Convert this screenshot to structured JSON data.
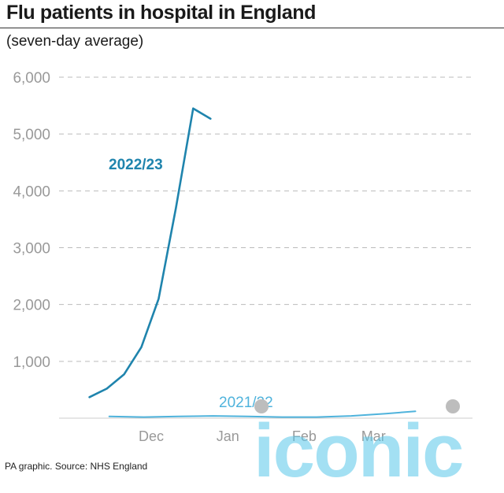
{
  "title": "Flu patients in hospital in England",
  "subtitle": "(seven-day average)",
  "source": "PA graphic. Source: NHS England",
  "watermark": "iconic",
  "colors": {
    "series_2022": "#1f84ad",
    "series_2021": "#4fb3dc",
    "grid": "#bbbbbb",
    "ticks": "#999999",
    "watermark": "#58c7ea"
  },
  "chart_data": {
    "type": "line",
    "title": "Flu patients in hospital in England",
    "subtitle": "(seven-day average)",
    "xlabel": "",
    "ylabel": "",
    "x_ticks": [
      "Dec",
      "Jan",
      "Feb",
      "Mar"
    ],
    "y_ticks": [
      "1,000",
      "2,000",
      "3,000",
      "4,000",
      "5,000",
      "6,000"
    ],
    "ylim": [
      0,
      6000
    ],
    "grid": "horizontal dashed",
    "series": [
      {
        "name": "2022/23",
        "x": [
          "2022-11-20",
          "2022-11-27",
          "2022-12-04",
          "2022-12-11",
          "2022-12-18",
          "2022-12-25",
          "2023-01-01",
          "2023-01-08"
        ],
        "values": [
          370,
          520,
          770,
          1250,
          2100,
          3700,
          5450,
          5270
        ]
      },
      {
        "name": "2021/22",
        "x": [
          "2021-11-28",
          "2021-12-12",
          "2021-12-26",
          "2022-01-09",
          "2022-01-23",
          "2022-02-06",
          "2022-02-20",
          "2022-03-06",
          "2022-03-20",
          "2022-04-01"
        ],
        "values": [
          30,
          20,
          30,
          40,
          30,
          20,
          20,
          40,
          80,
          120
        ]
      }
    ]
  }
}
